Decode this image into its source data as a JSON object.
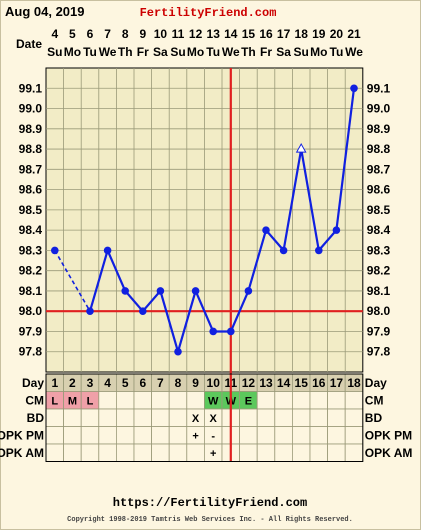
{
  "header": {
    "date": "Aug 04, 2019",
    "site": "FertilityFriend.com",
    "date_label": "Date"
  },
  "footer": {
    "url": "https://FertilityFriend.com",
    "copyright": "Copyright 1998-2019 Tamtris Web Services Inc. - All Rights Reserved."
  },
  "colors": {
    "line": "#1020e0",
    "coverline": "#e02020",
    "grid": "#9a9a78",
    "plot_bg": "#f2ecc6",
    "mens": "#f0a0a8",
    "cm_egg": "#5cc85c",
    "cm_watery": "#5cc85c"
  },
  "chart_data": {
    "type": "line",
    "dates": [
      "4",
      "5",
      "6",
      "7",
      "8",
      "9",
      "10",
      "11",
      "12",
      "13",
      "14",
      "15",
      "16",
      "17",
      "18",
      "19",
      "20",
      "21"
    ],
    "weekdays": [
      "Su",
      "Mo",
      "Tu",
      "We",
      "Th",
      "Fr",
      "Sa",
      "Su",
      "Mo",
      "Tu",
      "We",
      "Th",
      "Fr",
      "Sa",
      "Su",
      "Mo",
      "Tu",
      "We"
    ],
    "cycle_days": [
      "1",
      "2",
      "3",
      "4",
      "5",
      "6",
      "7",
      "8",
      "9",
      "10",
      "11",
      "12",
      "13",
      "14",
      "15",
      "16",
      "17",
      "18"
    ],
    "yticks": [
      "99.1",
      "99.0",
      "98.9",
      "98.8",
      "98.7",
      "98.6",
      "98.5",
      "98.4",
      "98.3",
      "98.2",
      "98.1",
      "98.0",
      "97.9",
      "97.8"
    ],
    "ylim": [
      97.7,
      99.2
    ],
    "temps": [
      98.3,
      null,
      98.0,
      98.3,
      98.1,
      98.0,
      98.1,
      97.8,
      98.1,
      97.9,
      97.9,
      98.1,
      98.4,
      98.3,
      98.8,
      98.3,
      98.4,
      99.1
    ],
    "dashed_segment": [
      0,
      2
    ],
    "open_points": [
      14
    ],
    "coverline": 98.0,
    "ovulation_day_index": 10,
    "rows": [
      {
        "label": "Day",
        "cells": []
      },
      {
        "label": "CM",
        "cells": [
          "L",
          "M",
          "L",
          "",
          "",
          "",
          "",
          "",
          "",
          "W",
          "W",
          "E",
          "",
          "",
          "",
          "",
          "",
          ""
        ]
      },
      {
        "label": "BD",
        "cells": [
          "",
          "",
          "",
          "",
          "",
          "",
          "",
          "",
          "X",
          "X",
          "",
          "",
          "",
          "",
          "",
          "",
          "",
          ""
        ]
      },
      {
        "label": "OPK PM",
        "cells": [
          "",
          "",
          "",
          "",
          "",
          "",
          "",
          "",
          "+",
          "-",
          "",
          "",
          "",
          "",
          "",
          "",
          "",
          ""
        ]
      },
      {
        "label": "OPK AM",
        "cells": [
          "",
          "",
          "",
          "",
          "",
          "",
          "",
          "",
          "",
          "+",
          "",
          "",
          "",
          "",
          "",
          "",
          "",
          ""
        ]
      }
    ]
  }
}
